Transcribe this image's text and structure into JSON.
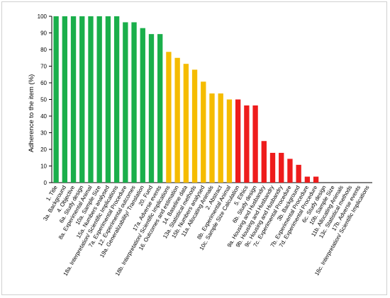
{
  "chart_data": {
    "type": "bar",
    "ylabel": "Adherence to the item (%)",
    "ylim": [
      0,
      100
    ],
    "yticks": [
      0,
      10,
      20,
      30,
      40,
      50,
      60,
      70,
      80,
      90,
      100
    ],
    "grid": false,
    "legend": "none",
    "colors": {
      "green": "#1aaf4b",
      "yellow": "#f5bc00",
      "red": "#ee1c1c"
    },
    "categories": [
      "1. Title",
      "3a. Background",
      "4. Objective",
      "6a. Study design",
      "8a. Experimental Animal",
      "10a. Sample Size",
      "15a. Numbers analysed",
      "18a. Interpretation/ Scientific Implications",
      "7a. Experimental Procedure",
      "12. Experimental outcomes",
      "19a. Generalizability/ Translation",
      "20. Fund",
      "17a. Adverse events",
      "18b. Interpretation/ Scientific Implications",
      "16. Outcomes and estimation",
      "14. Baseline data",
      "13a. Statistical methods",
      "15b. Numbers analysed",
      "11a. Allocating Animals",
      "2. Abstract",
      "8b. Experimental Animal",
      "10c. Sample Size Calculation",
      "5. Ethics",
      "6b. Study design",
      "9a. Housing and Husbandry",
      "9b. Housing and Husbandry",
      "9c. Housing and Husbandry",
      "7c. Experimental Procedure",
      "3b. Background",
      "7b. Experimental Procedure",
      "7d. Experimental Procedure",
      "6c. Study design",
      "10b. Sample Size",
      "11b. Allocating Animals",
      "13c. Statistical methods",
      "17b. Adverse events",
      "18c. Interpretation/ Scientific Implications"
    ],
    "values": [
      100,
      100,
      100,
      100,
      100,
      100,
      100,
      100,
      96.4,
      96.4,
      92.9,
      89.3,
      89.3,
      78.6,
      75,
      71.4,
      67.9,
      60.7,
      53.6,
      53.6,
      50,
      50,
      46.4,
      46.4,
      25,
      17.9,
      17.9,
      14.3,
      10.7,
      3.6,
      3.6,
      0,
      0,
      0,
      0,
      0,
      0
    ],
    "bar_colors": [
      "green",
      "green",
      "green",
      "green",
      "green",
      "green",
      "green",
      "green",
      "green",
      "green",
      "green",
      "green",
      "green",
      "yellow",
      "yellow",
      "yellow",
      "yellow",
      "yellow",
      "yellow",
      "yellow",
      "yellow",
      "red",
      "red",
      "red",
      "red",
      "red",
      "red",
      "red",
      "red",
      "red",
      "red",
      "red",
      "red",
      "red",
      "red",
      "red",
      "red"
    ]
  }
}
